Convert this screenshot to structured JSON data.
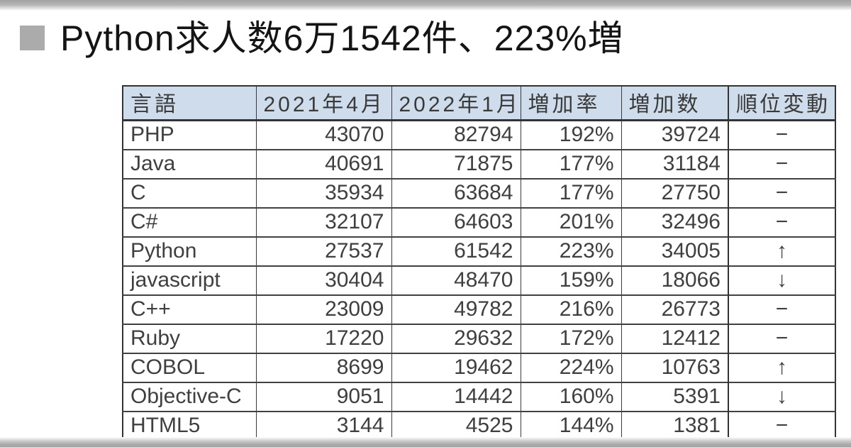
{
  "header": {
    "bullet_icon": "gray-square",
    "title": "Python求人数6万1542件、223%増"
  },
  "colors": {
    "header_row_bg": "#cfdceb",
    "table_border": "#333333",
    "cell_text": "#3f3f3f",
    "title_text": "#141414",
    "bullet_gray": "#ababab",
    "edge_strip_gray": "#a4a4a4"
  },
  "table": {
    "columns": [
      "言語",
      "2021年4月",
      "2022年1月",
      "増加率",
      "増加数",
      "順位変動"
    ],
    "rows": [
      [
        "PHP",
        "43070",
        "82794",
        "192%",
        "39724",
        "−"
      ],
      [
        "Java",
        "40691",
        "71875",
        "177%",
        "31184",
        "−"
      ],
      [
        "C",
        "35934",
        "63684",
        "177%",
        "27750",
        "−"
      ],
      [
        "C#",
        "32107",
        "64603",
        "201%",
        "32496",
        "−"
      ],
      [
        "Python",
        "27537",
        "61542",
        "223%",
        "34005",
        "↑"
      ],
      [
        "javascript",
        "30404",
        "48470",
        "159%",
        "18066",
        "↓"
      ],
      [
        "C++",
        "23009",
        "49782",
        "216%",
        "26773",
        "−"
      ],
      [
        "Ruby",
        "17220",
        "29632",
        "172%",
        "12412",
        "−"
      ],
      [
        "COBOL",
        "8699",
        "19462",
        "224%",
        "10763",
        "↑"
      ],
      [
        "Objective-C",
        "9051",
        "14442",
        "160%",
        "5391",
        "↓"
      ],
      [
        "HTML5",
        "3144",
        "4525",
        "144%",
        "1381",
        "−"
      ]
    ]
  },
  "chart_data": {
    "type": "table",
    "title": "Python求人数6万1542件、223%増",
    "columns": [
      "言語",
      "2021年4月",
      "2022年1月",
      "増加率",
      "増加数",
      "順位変動"
    ],
    "rows": [
      [
        "PHP",
        43070,
        82794,
        "192%",
        39724,
        "no-change"
      ],
      [
        "Java",
        40691,
        71875,
        "177%",
        31184,
        "no-change"
      ],
      [
        "C",
        35934,
        63684,
        "177%",
        27750,
        "no-change"
      ],
      [
        "C#",
        32107,
        64603,
        "201%",
        32496,
        "no-change"
      ],
      [
        "Python",
        27537,
        61542,
        "223%",
        34005,
        "up"
      ],
      [
        "javascript",
        30404,
        48470,
        "159%",
        18066,
        "down"
      ],
      [
        "C++",
        23009,
        49782,
        "216%",
        26773,
        "no-change"
      ],
      [
        "Ruby",
        17220,
        29632,
        "172%",
        12412,
        "no-change"
      ],
      [
        "COBOL",
        8699,
        19462,
        "224%",
        10763,
        "up"
      ],
      [
        "Objective-C",
        9051,
        14442,
        "160%",
        5391,
        "down"
      ],
      [
        "HTML5",
        3144,
        4525,
        "144%",
        1381,
        "no-change"
      ]
    ]
  }
}
